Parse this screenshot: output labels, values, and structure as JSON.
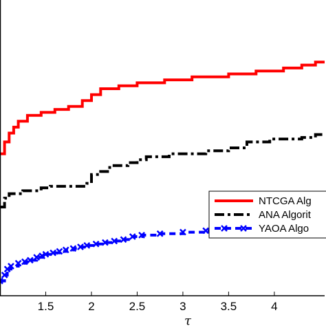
{
  "chart_data": {
    "type": "line",
    "xlabel": "τ",
    "ylabel": "",
    "title": "",
    "xlim": [
      1.0,
      4.55
    ],
    "ylim": [
      0.0,
      1.0
    ],
    "x_ticks": [
      1.5,
      2,
      2.5,
      3,
      3.5,
      4
    ],
    "x_tick_labels": [
      "1.5",
      "2",
      "2.5",
      "3",
      "3.5",
      "4"
    ],
    "grid": false,
    "legend_position": "right",
    "series": [
      {
        "name": "NTCGA Algorithm",
        "legend_text": "NTCGA Alg",
        "color": "#ff0000",
        "style": "solid",
        "marker": "none",
        "x": [
          1.0,
          1.05,
          1.05,
          1.1,
          1.1,
          1.15,
          1.15,
          1.2,
          1.2,
          1.3,
          1.3,
          1.45,
          1.45,
          1.6,
          1.6,
          1.75,
          1.75,
          1.9,
          1.9,
          2.0,
          2.0,
          2.1,
          2.1,
          2.3,
          2.3,
          2.5,
          2.5,
          2.8,
          2.8,
          3.1,
          3.1,
          3.5,
          3.5,
          3.8,
          3.8,
          4.1,
          4.1,
          4.3,
          4.3,
          4.45,
          4.45,
          4.55
        ],
        "y": [
          0.48,
          0.48,
          0.52,
          0.52,
          0.55,
          0.55,
          0.57,
          0.57,
          0.59,
          0.59,
          0.61,
          0.61,
          0.62,
          0.62,
          0.63,
          0.63,
          0.64,
          0.64,
          0.66,
          0.66,
          0.68,
          0.68,
          0.7,
          0.7,
          0.71,
          0.71,
          0.72,
          0.72,
          0.73,
          0.73,
          0.74,
          0.74,
          0.75,
          0.75,
          0.76,
          0.76,
          0.77,
          0.77,
          0.78,
          0.78,
          0.79,
          0.79
        ]
      },
      {
        "name": "ANA Algorithm",
        "legend_text": "ANA Algorit",
        "color": "#000000",
        "style": "dashdot",
        "marker": "none",
        "x": [
          1.0,
          1.05,
          1.05,
          1.1,
          1.1,
          1.25,
          1.25,
          1.45,
          1.45,
          1.55,
          1.55,
          1.95,
          1.95,
          2.0,
          2.0,
          2.1,
          2.1,
          2.2,
          2.2,
          2.4,
          2.4,
          2.5,
          2.5,
          2.6,
          2.6,
          2.85,
          2.85,
          3.25,
          3.25,
          3.5,
          3.5,
          3.7,
          3.7,
          3.95,
          3.95,
          4.3,
          4.3,
          4.45,
          4.45,
          4.55
        ],
        "y": [
          0.3,
          0.3,
          0.33,
          0.33,
          0.345,
          0.345,
          0.355,
          0.355,
          0.365,
          0.365,
          0.37,
          0.37,
          0.38,
          0.38,
          0.41,
          0.41,
          0.42,
          0.42,
          0.44,
          0.44,
          0.45,
          0.45,
          0.46,
          0.46,
          0.47,
          0.47,
          0.48,
          0.48,
          0.49,
          0.49,
          0.5,
          0.5,
          0.52,
          0.52,
          0.53,
          0.53,
          0.535,
          0.535,
          0.545,
          0.545
        ]
      },
      {
        "name": "YAOA Algorithm",
        "legend_text": "YAOA Algo",
        "color": "#0000ff",
        "style": "dashed",
        "marker": "x",
        "x": [
          1.0,
          1.05,
          1.05,
          1.08,
          1.08,
          1.12,
          1.12,
          1.2,
          1.2,
          1.27,
          1.27,
          1.33,
          1.33,
          1.4,
          1.4,
          1.46,
          1.46,
          1.5,
          1.5,
          1.58,
          1.58,
          1.65,
          1.65,
          1.72,
          1.72,
          1.8,
          1.8,
          1.88,
          1.88,
          1.95,
          1.95,
          2.05,
          2.05,
          2.15,
          2.15,
          2.25,
          2.25,
          2.35,
          2.35,
          2.45,
          2.45,
          2.55,
          2.55,
          2.75,
          2.75,
          3.0,
          3.0,
          3.25,
          3.25,
          3.5,
          3.5,
          3.8,
          3.8,
          4.3,
          4.3,
          4.55
        ],
        "y": [
          0.05,
          0.05,
          0.07,
          0.07,
          0.09,
          0.09,
          0.1,
          0.1,
          0.11,
          0.11,
          0.115,
          0.115,
          0.12,
          0.12,
          0.13,
          0.13,
          0.135,
          0.135,
          0.14,
          0.14,
          0.145,
          0.145,
          0.15,
          0.15,
          0.155,
          0.155,
          0.16,
          0.16,
          0.165,
          0.165,
          0.17,
          0.17,
          0.175,
          0.175,
          0.18,
          0.18,
          0.185,
          0.185,
          0.19,
          0.19,
          0.2,
          0.2,
          0.205,
          0.205,
          0.21,
          0.21,
          0.215,
          0.215,
          0.22,
          0.22,
          0.225,
          0.225,
          0.23,
          0.23,
          0.24,
          0.24
        ]
      }
    ]
  }
}
